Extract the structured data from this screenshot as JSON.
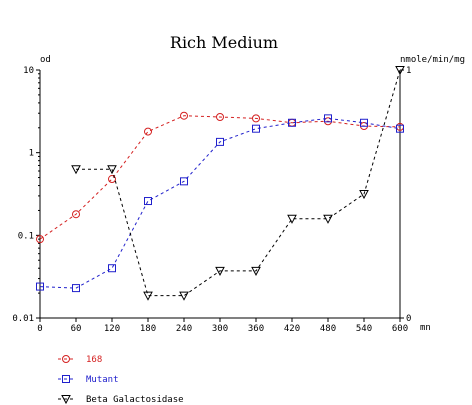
{
  "chart_data": {
    "type": "line",
    "title": "Rich Medium",
    "y_left_label": "od",
    "y_right_label": "nmole/min/mg",
    "x_unit": "mn",
    "x_ticks": [
      "0",
      "60",
      "120",
      "180",
      "240",
      "300",
      "360",
      "420",
      "480",
      "540",
      "600"
    ],
    "x_range": [
      0,
      600
    ],
    "y_left_scale": "log",
    "y_left_range": [
      0.01,
      10
    ],
    "y_left_ticks": [
      "0.01",
      "0.1",
      "1",
      "10"
    ],
    "y_right_scale": "linear",
    "y_right_range": [
      0,
      1
    ],
    "y_right_ticks": [
      "0",
      "1"
    ],
    "legend_placement": "bottom-left",
    "series": [
      {
        "name": "168",
        "axis": "left",
        "marker": "circle",
        "color": "#d42020",
        "x": [
          0,
          60,
          120,
          180,
          240,
          300,
          360,
          420,
          480,
          540,
          600
        ],
        "y": [
          0.09,
          0.18,
          0.48,
          1.8,
          2.8,
          2.7,
          2.6,
          2.3,
          2.4,
          2.1,
          2.05
        ]
      },
      {
        "name": "Mutant",
        "axis": "left",
        "marker": "square",
        "color": "#2020cc",
        "x": [
          0,
          60,
          120,
          180,
          240,
          300,
          360,
          420,
          480,
          540,
          600
        ],
        "y": [
          0.024,
          0.023,
          0.04,
          0.26,
          0.45,
          1.35,
          1.95,
          2.3,
          2.6,
          2.3,
          1.95
        ]
      },
      {
        "name": "Beta Galactosidase",
        "axis": "right",
        "marker": "triangle-down",
        "color": "#000000",
        "x": [
          60,
          120,
          180,
          240,
          300,
          360,
          420,
          480,
          540,
          600
        ],
        "y": [
          0.6,
          0.6,
          0.09,
          0.09,
          0.19,
          0.19,
          0.4,
          0.4,
          0.5,
          1.0
        ]
      }
    ]
  }
}
